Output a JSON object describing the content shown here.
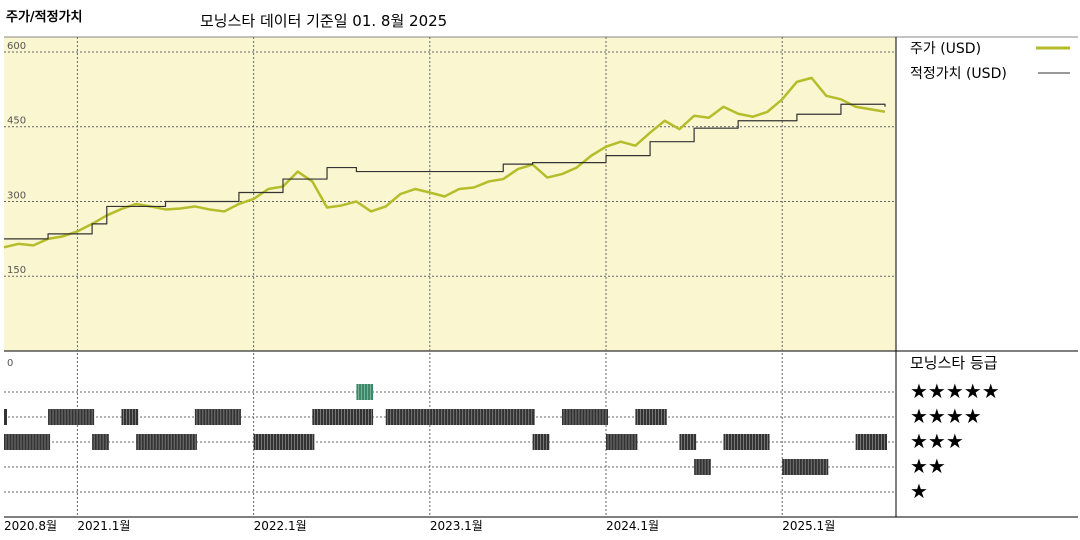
{
  "header": {
    "title": "주가/적정가치",
    "subtitle": "모닝스타 데이터 기준일 01. 8월 2025"
  },
  "chart_data": {
    "type": "line",
    "title": "주가/적정가치",
    "ylim": [
      0,
      630
    ],
    "y_ticks": [
      "600",
      "450",
      "300",
      "150",
      "0"
    ],
    "x_tick_labels": [
      "2020.8월",
      "2021.1월",
      "2022.1월",
      "2023.1월",
      "2024.1월",
      "2025.1월"
    ],
    "x_tick_dates": [
      "2020-08",
      "2021-01",
      "2022-01",
      "2023-01",
      "2024-01",
      "2025-01"
    ],
    "x_range": [
      "2020-08",
      "2025-08"
    ],
    "grid": true,
    "legend_position": "right",
    "series": [
      {
        "name": "주가 (USD)",
        "color": "#b5bd2b",
        "x": [
          "2020-08",
          "2020-09",
          "2020-10",
          "2020-11",
          "2020-12",
          "2021-01",
          "2021-02",
          "2021-03",
          "2021-04",
          "2021-05",
          "2021-06",
          "2021-07",
          "2021-08",
          "2021-09",
          "2021-10",
          "2021-11",
          "2021-12",
          "2022-01",
          "2022-02",
          "2022-03",
          "2022-04",
          "2022-05",
          "2022-06",
          "2022-07",
          "2022-08",
          "2022-09",
          "2022-10",
          "2022-11",
          "2022-12",
          "2023-01",
          "2023-02",
          "2023-03",
          "2023-04",
          "2023-05",
          "2023-06",
          "2023-07",
          "2023-08",
          "2023-09",
          "2023-10",
          "2023-11",
          "2023-12",
          "2024-01",
          "2024-02",
          "2024-03",
          "2024-04",
          "2024-05",
          "2024-06",
          "2024-07",
          "2024-08",
          "2024-09",
          "2024-10",
          "2024-11",
          "2024-12",
          "2025-01",
          "2025-02",
          "2025-03",
          "2025-04",
          "2025-05",
          "2025-06",
          "2025-07",
          "2025-08"
        ],
        "values": [
          208,
          215,
          212,
          225,
          230,
          240,
          255,
          272,
          285,
          295,
          290,
          284,
          286,
          290,
          284,
          280,
          295,
          305,
          325,
          330,
          360,
          340,
          288,
          292,
          300,
          280,
          290,
          315,
          325,
          318,
          310,
          325,
          328,
          340,
          345,
          365,
          374,
          348,
          355,
          368,
          392,
          410,
          420,
          412,
          438,
          462,
          445,
          472,
          468,
          490,
          476,
          470,
          480,
          505,
          540,
          548,
          512,
          505,
          490,
          485,
          480
        ]
      },
      {
        "name": "적정가치 (USD)",
        "color": "#333333",
        "x": [
          "2020-08",
          "2020-11",
          "2021-02",
          "2021-03",
          "2021-07",
          "2021-12",
          "2022-03",
          "2022-06",
          "2022-08",
          "2023-06",
          "2023-08",
          "2024-01",
          "2024-04",
          "2024-07",
          "2024-10",
          "2025-02",
          "2025-05",
          "2025-08"
        ],
        "values": [
          225,
          235,
          255,
          290,
          300,
          318,
          345,
          368,
          360,
          375,
          378,
          392,
          420,
          447,
          462,
          475,
          495,
          490
        ]
      }
    ]
  },
  "rating": {
    "title": "모닝스타 등급",
    "levels": [
      "★★★★★",
      "★★★★",
      "★★★",
      "★★",
      "★"
    ],
    "bars_color": "#333333",
    "highlight_color": "#3a8a6a",
    "segments": [
      {
        "level": 5,
        "start": "2022-08",
        "end": "2022-09",
        "highlight": true
      },
      {
        "level": 4,
        "start": "2020-08",
        "end": "2020-08",
        "highlight": false
      },
      {
        "level": 4,
        "start": "2020-11",
        "end": "2021-02",
        "highlight": false
      },
      {
        "level": 4,
        "start": "2021-04",
        "end": "2021-05",
        "highlight": false
      },
      {
        "level": 4,
        "start": "2021-09",
        "end": "2021-12",
        "highlight": false
      },
      {
        "level": 4,
        "start": "2022-05",
        "end": "2022-09",
        "highlight": false
      },
      {
        "level": 4,
        "start": "2022-10",
        "end": "2023-08",
        "highlight": false
      },
      {
        "level": 4,
        "start": "2023-10",
        "end": "2024-01",
        "highlight": false
      },
      {
        "level": 4,
        "start": "2024-03",
        "end": "2024-05",
        "highlight": false
      },
      {
        "level": 3,
        "start": "2020-08",
        "end": "2020-11",
        "highlight": false
      },
      {
        "level": 3,
        "start": "2021-02",
        "end": "2021-03",
        "highlight": false
      },
      {
        "level": 3,
        "start": "2021-05",
        "end": "2021-09",
        "highlight": false
      },
      {
        "level": 3,
        "start": "2022-01",
        "end": "2022-05",
        "highlight": false
      },
      {
        "level": 3,
        "start": "2023-08",
        "end": "2023-09",
        "highlight": false
      },
      {
        "level": 3,
        "start": "2024-01",
        "end": "2024-03",
        "highlight": false
      },
      {
        "level": 3,
        "start": "2024-06",
        "end": "2024-07",
        "highlight": false
      },
      {
        "level": 3,
        "start": "2024-09",
        "end": "2024-12",
        "highlight": false
      },
      {
        "level": 3,
        "start": "2025-06",
        "end": "2025-08",
        "highlight": false
      },
      {
        "level": 2,
        "start": "2024-07",
        "end": "2024-08",
        "highlight": false
      },
      {
        "level": 2,
        "start": "2025-01",
        "end": "2025-04",
        "highlight": false
      }
    ]
  }
}
